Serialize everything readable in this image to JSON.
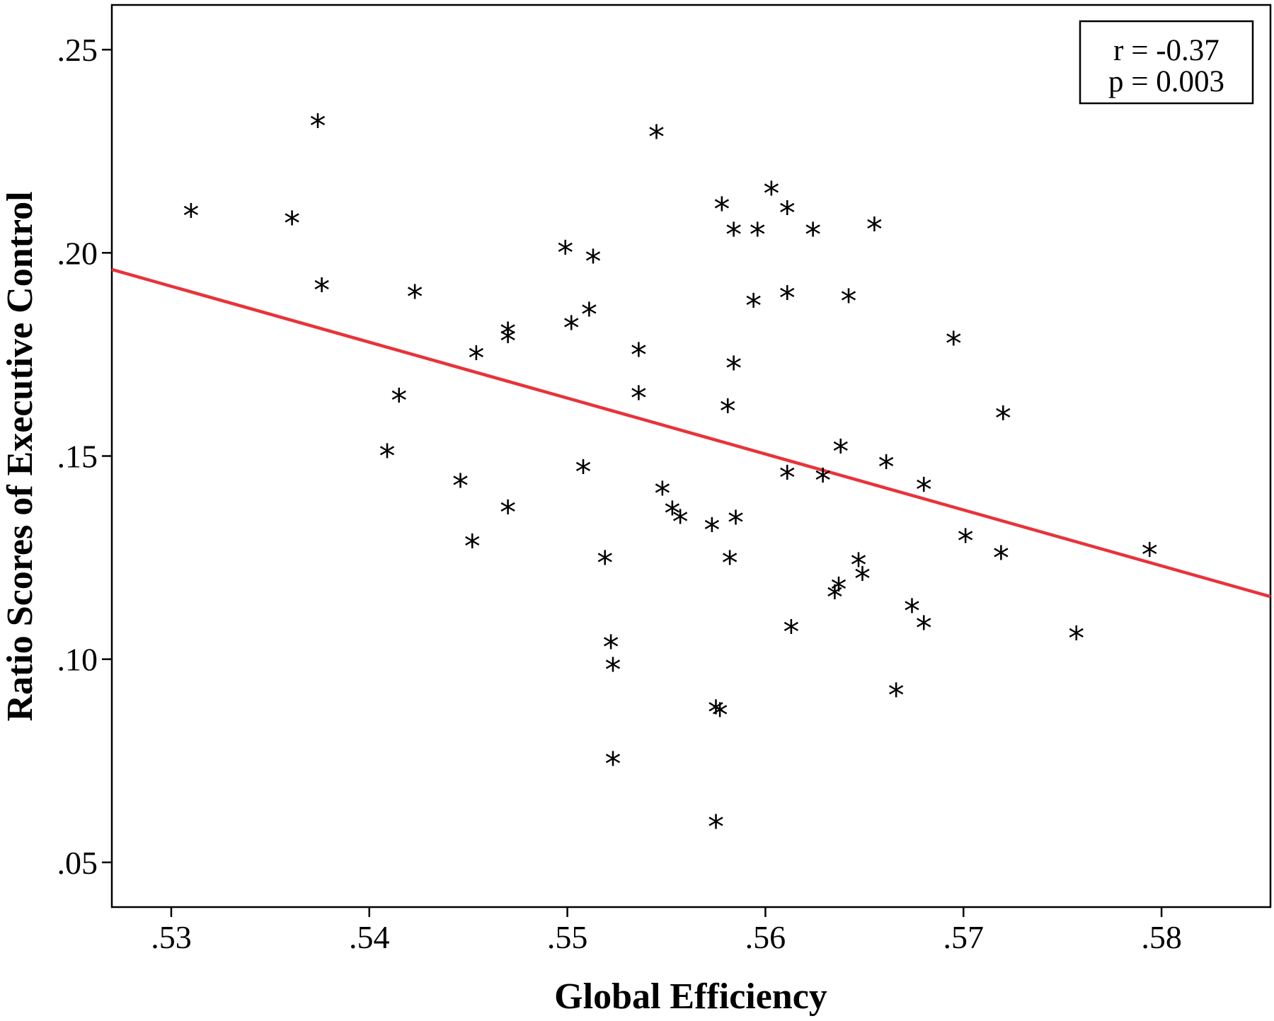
{
  "chart_data": {
    "type": "scatter",
    "xlabel": "Global Efficiency",
    "ylabel": "Ratio Scores of Executive Control",
    "xlim": [
      0.527,
      0.5855
    ],
    "ylim": [
      0.039,
      0.261
    ],
    "x_ticks": [
      0.53,
      0.54,
      0.55,
      0.56,
      0.57,
      0.58
    ],
    "x_tick_labels": [
      ".53",
      ".54",
      ".55",
      ".56",
      ".57",
      ".58"
    ],
    "y_ticks": [
      0.05,
      0.1,
      0.15,
      0.2,
      0.25
    ],
    "y_tick_labels": [
      ".05",
      ".10",
      ".15",
      ".20",
      ".25"
    ],
    "grid": false,
    "marker": "*",
    "annotation": {
      "lines": [
        "r = -0.37",
        "p = 0.003"
      ],
      "placement": "top-right"
    },
    "fit_line": {
      "color": "#e8333a",
      "x": [
        0.527,
        0.5855
      ],
      "y": [
        0.1959,
        0.1154
      ]
    },
    "points": [
      {
        "x": 0.531,
        "y": 0.2097
      },
      {
        "x": 0.5361,
        "y": 0.2079
      },
      {
        "x": 0.5374,
        "y": 0.2318
      },
      {
        "x": 0.5376,
        "y": 0.1914
      },
      {
        "x": 0.5409,
        "y": 0.1506
      },
      {
        "x": 0.5415,
        "y": 0.1643
      },
      {
        "x": 0.5423,
        "y": 0.1898
      },
      {
        "x": 0.5446,
        "y": 0.1433
      },
      {
        "x": 0.5452,
        "y": 0.1284
      },
      {
        "x": 0.5454,
        "y": 0.1747
      },
      {
        "x": 0.547,
        "y": 0.1806
      },
      {
        "x": 0.547,
        "y": 0.1789
      },
      {
        "x": 0.547,
        "y": 0.1368
      },
      {
        "x": 0.5499,
        "y": 0.2007
      },
      {
        "x": 0.5502,
        "y": 0.1821
      },
      {
        "x": 0.5508,
        "y": 0.1467
      },
      {
        "x": 0.5511,
        "y": 0.1854
      },
      {
        "x": 0.5513,
        "y": 0.1985
      },
      {
        "x": 0.5519,
        "y": 0.1243
      },
      {
        "x": 0.5522,
        "y": 0.1036
      },
      {
        "x": 0.5523,
        "y": 0.098
      },
      {
        "x": 0.5523,
        "y": 0.0749
      },
      {
        "x": 0.5536,
        "y": 0.1755
      },
      {
        "x": 0.5536,
        "y": 0.1649
      },
      {
        "x": 0.5545,
        "y": 0.2291
      },
      {
        "x": 0.5548,
        "y": 0.1414
      },
      {
        "x": 0.5553,
        "y": 0.1365
      },
      {
        "x": 0.5557,
        "y": 0.1344
      },
      {
        "x": 0.5573,
        "y": 0.1324
      },
      {
        "x": 0.5575,
        "y": 0.0594
      },
      {
        "x": 0.5575,
        "y": 0.0876
      },
      {
        "x": 0.5577,
        "y": 0.0869
      },
      {
        "x": 0.5578,
        "y": 0.2114
      },
      {
        "x": 0.5581,
        "y": 0.1617
      },
      {
        "x": 0.5582,
        "y": 0.1243
      },
      {
        "x": 0.5584,
        "y": 0.2051
      },
      {
        "x": 0.5584,
        "y": 0.1722
      },
      {
        "x": 0.5585,
        "y": 0.1342
      },
      {
        "x": 0.5594,
        "y": 0.1876
      },
      {
        "x": 0.5596,
        "y": 0.2051
      },
      {
        "x": 0.5603,
        "y": 0.2152
      },
      {
        "x": 0.5611,
        "y": 0.2104
      },
      {
        "x": 0.5611,
        "y": 0.1895
      },
      {
        "x": 0.5611,
        "y": 0.1453
      },
      {
        "x": 0.5613,
        "y": 0.1073
      },
      {
        "x": 0.5624,
        "y": 0.2051
      },
      {
        "x": 0.5629,
        "y": 0.1446
      },
      {
        "x": 0.5635,
        "y": 0.1159
      },
      {
        "x": 0.5637,
        "y": 0.1178
      },
      {
        "x": 0.5638,
        "y": 0.1517
      },
      {
        "x": 0.5642,
        "y": 0.1887
      },
      {
        "x": 0.5647,
        "y": 0.1238
      },
      {
        "x": 0.5649,
        "y": 0.1204
      },
      {
        "x": 0.5655,
        "y": 0.2064
      },
      {
        "x": 0.5661,
        "y": 0.1479
      },
      {
        "x": 0.5666,
        "y": 0.0918
      },
      {
        "x": 0.5674,
        "y": 0.1125
      },
      {
        "x": 0.568,
        "y": 0.1423
      },
      {
        "x": 0.568,
        "y": 0.1083
      },
      {
        "x": 0.5695,
        "y": 0.1783
      },
      {
        "x": 0.5701,
        "y": 0.1297
      },
      {
        "x": 0.5719,
        "y": 0.1255
      },
      {
        "x": 0.572,
        "y": 0.1599
      },
      {
        "x": 0.5757,
        "y": 0.1058
      },
      {
        "x": 0.5794,
        "y": 0.1263
      }
    ]
  }
}
